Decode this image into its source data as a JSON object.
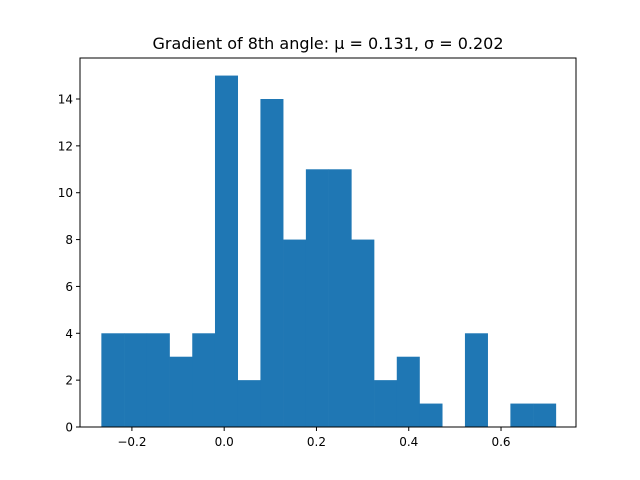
{
  "chart_data": {
    "type": "bar",
    "title": "Gradient of 8th angle: μ = 0.131, σ = 0.202",
    "xlabel": "",
    "ylabel": "",
    "xlim": [
      -0.3125,
      0.7625
    ],
    "ylim": [
      0,
      15.75
    ],
    "bin_start": -0.2662,
    "bin_width": 0.04925,
    "counts": [
      4,
      4,
      4,
      3,
      4,
      15,
      2,
      14,
      8,
      11,
      11,
      8,
      2,
      3,
      1,
      0,
      4,
      0,
      1,
      1
    ],
    "bar_color": "#1f77b4",
    "grid": false,
    "legend": "none",
    "x_ticks": [
      {
        "value": -0.2,
        "label": "−0.2"
      },
      {
        "value": 0.0,
        "label": "0.0"
      },
      {
        "value": 0.2,
        "label": "0.2"
      },
      {
        "value": 0.4,
        "label": "0.4"
      },
      {
        "value": 0.6,
        "label": "0.6"
      }
    ],
    "y_ticks": [
      {
        "value": 0,
        "label": "0"
      },
      {
        "value": 2,
        "label": "2"
      },
      {
        "value": 4,
        "label": "4"
      },
      {
        "value": 6,
        "label": "6"
      },
      {
        "value": 8,
        "label": "8"
      },
      {
        "value": 10,
        "label": "10"
      },
      {
        "value": 12,
        "label": "12"
      },
      {
        "value": 14,
        "label": "14"
      }
    ]
  }
}
